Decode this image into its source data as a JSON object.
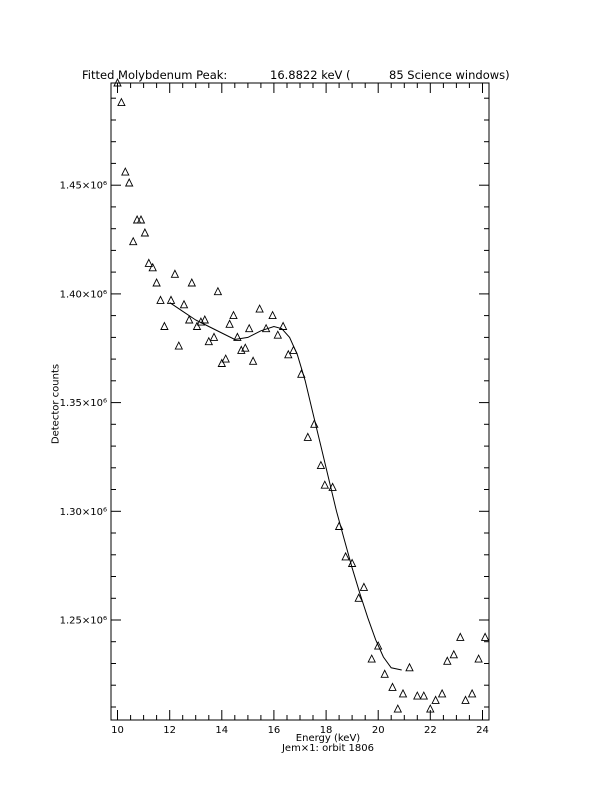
{
  "title": {
    "prefix": "Fitted Molybdenum Peak:",
    "energy": "16.8822 keV (",
    "windows": "85 Science windows)"
  },
  "footer": "Jem×1: orbit 1806",
  "chart_data": {
    "type": "scatter",
    "title": "Fitted Molybdenum Peak:      16.8822 keV (      85 Science windows)",
    "xlabel": "Energy (keV)",
    "ylabel": "Detector counts",
    "xlim": [
      9.75,
      24.25
    ],
    "ylim": [
      1204000.0,
      1497000.0
    ],
    "xticks": [
      10,
      12,
      14,
      16,
      18,
      20,
      22,
      24
    ],
    "xtick_labels": [
      "10",
      "12",
      "14",
      "16",
      "18",
      "20",
      "22",
      "24"
    ],
    "yticks": [
      1250000.0,
      1300000.0,
      1350000.0,
      1400000.0,
      1450000.0
    ],
    "ytick_labels": [
      "1.25×10⁶",
      "1.30×10⁶",
      "1.35×10⁶",
      "1.40×10⁶",
      "1.45×10⁶"
    ],
    "grid": false,
    "series": [
      {
        "marker": "triangle",
        "x": [
          10.0,
          10.15,
          10.3,
          10.45,
          10.6,
          10.75,
          10.9,
          11.05,
          11.2,
          11.35,
          11.5,
          11.65,
          11.8,
          12.05,
          12.2,
          12.35,
          12.55,
          12.75,
          12.85,
          13.05,
          13.2,
          13.35,
          13.5,
          13.7,
          13.85,
          14.0,
          14.15,
          14.3,
          14.45,
          14.6,
          14.75,
          14.9,
          15.05,
          15.2,
          15.45,
          15.7,
          15.95,
          16.15,
          16.35,
          16.55,
          16.75,
          17.05,
          17.3,
          17.55,
          17.8,
          17.95,
          18.25,
          18.5,
          18.75,
          19.0,
          19.25,
          19.45,
          19.75,
          20.0,
          20.25,
          20.55,
          20.75,
          20.95,
          21.2,
          21.5,
          21.75,
          22.0,
          22.2,
          22.45,
          22.65,
          22.9,
          23.15,
          23.35,
          23.6,
          23.85,
          24.1
        ],
        "y": [
          1497000.0,
          1488000.0,
          1456000.0,
          1451000.0,
          1424000.0,
          1434000.0,
          1434000.0,
          1428000.0,
          1414000.0,
          1412000.0,
          1405000.0,
          1397000.0,
          1385000.0,
          1397000.0,
          1409000.0,
          1376000.0,
          1395000.0,
          1388000.0,
          1405000.0,
          1385000.0,
          1387000.0,
          1388000.0,
          1378000.0,
          1380000.0,
          1401000.0,
          1368000.0,
          1370000.0,
          1386000.0,
          1390000.0,
          1380000.0,
          1374000.0,
          1375000.0,
          1384000.0,
          1369000.0,
          1393000.0,
          1384000.0,
          1390000.0,
          1381000.0,
          1385000.0,
          1372000.0,
          1374000.0,
          1363000.0,
          1334000.0,
          1340000.0,
          1321000.0,
          1312000.0,
          1311000.0,
          1293000.0,
          1279000.0,
          1276000.0,
          1260000.0,
          1265000.0,
          1232000.0,
          1238000.0,
          1225000.0,
          1219000.0,
          1209000.0,
          1216000.0,
          1228000.0,
          1215000.0,
          1215000.0,
          1209000.0,
          1213000.0,
          1216000.0,
          1231000.0,
          1234000.0,
          1242000.0,
          1213000.0,
          1216000.0,
          1232000.0,
          1242000.0
        ]
      },
      {
        "marker": "line",
        "x": [
          12.0,
          12.5,
          13.0,
          13.5,
          14.0,
          14.5,
          15.0,
          15.5,
          16.0,
          16.3,
          16.6,
          16.9,
          17.2,
          17.5,
          17.8,
          18.1,
          18.4,
          18.7,
          19.0,
          19.3,
          19.6,
          19.9,
          20.2,
          20.5,
          20.9
        ],
        "y": [
          1396000.0,
          1392000.0,
          1388000.0,
          1385000.0,
          1382000.0,
          1379000.0,
          1380000.0,
          1383000.0,
          1385000.0,
          1384000.0,
          1380000.0,
          1372000.0,
          1360000.0,
          1345000.0,
          1330000.0,
          1315000.0,
          1300000.0,
          1287000.0,
          1274000.0,
          1262000.0,
          1251000.0,
          1241000.0,
          1233000.0,
          1228000.0,
          1227000.0
        ]
      }
    ]
  }
}
